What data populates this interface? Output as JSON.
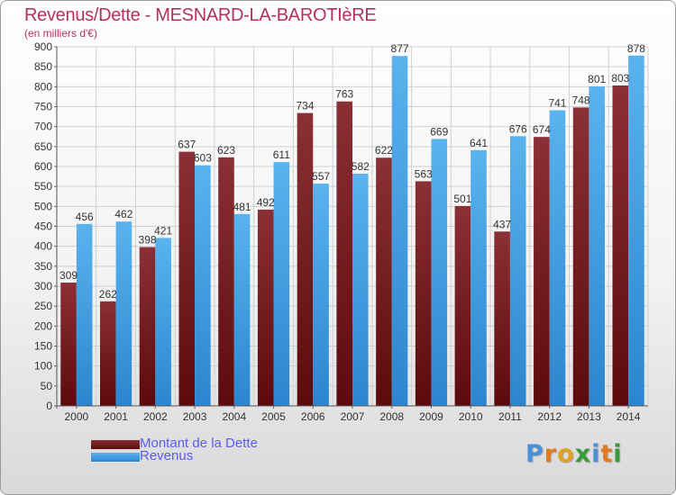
{
  "header": {
    "title": "Revenus/Dette - MESNARD-LA-BAROTIèRE",
    "subtitle": "(en milliers d'€)"
  },
  "chart_data": {
    "type": "bar",
    "categories": [
      "2000",
      "2001",
      "2002",
      "2003",
      "2004",
      "2005",
      "2006",
      "2007",
      "2008",
      "2009",
      "2010",
      "2011",
      "2012",
      "2013",
      "2014"
    ],
    "series": [
      {
        "name": "Montant de la Dette",
        "color": "#7a1f22",
        "values": [
          309,
          262,
          398,
          637,
          623,
          492,
          734,
          763,
          622,
          563,
          501,
          437,
          674,
          748,
          803
        ]
      },
      {
        "name": "Revenus",
        "color": "#4aa3e6",
        "values": [
          456,
          462,
          421,
          603,
          481,
          611,
          557,
          582,
          877,
          669,
          641,
          676,
          741,
          801,
          878
        ]
      }
    ],
    "ylim": [
      0,
      900
    ],
    "ytick_step": 50,
    "grid": true,
    "legend_position": "bottom-left"
  },
  "logo": {
    "text": "Proxiti",
    "letters": [
      {
        "ch": "P",
        "color": "#4a90d9"
      },
      {
        "ch": "r",
        "color": "#e07b1f"
      },
      {
        "ch": "o",
        "color": "#e0a020"
      },
      {
        "ch": "x",
        "color": "#3a9a3a"
      },
      {
        "ch": "i",
        "color": "#4a90d9"
      },
      {
        "ch": "t",
        "color": "#e07b1f"
      },
      {
        "ch": "i",
        "color": "#3a9a3a"
      }
    ]
  }
}
